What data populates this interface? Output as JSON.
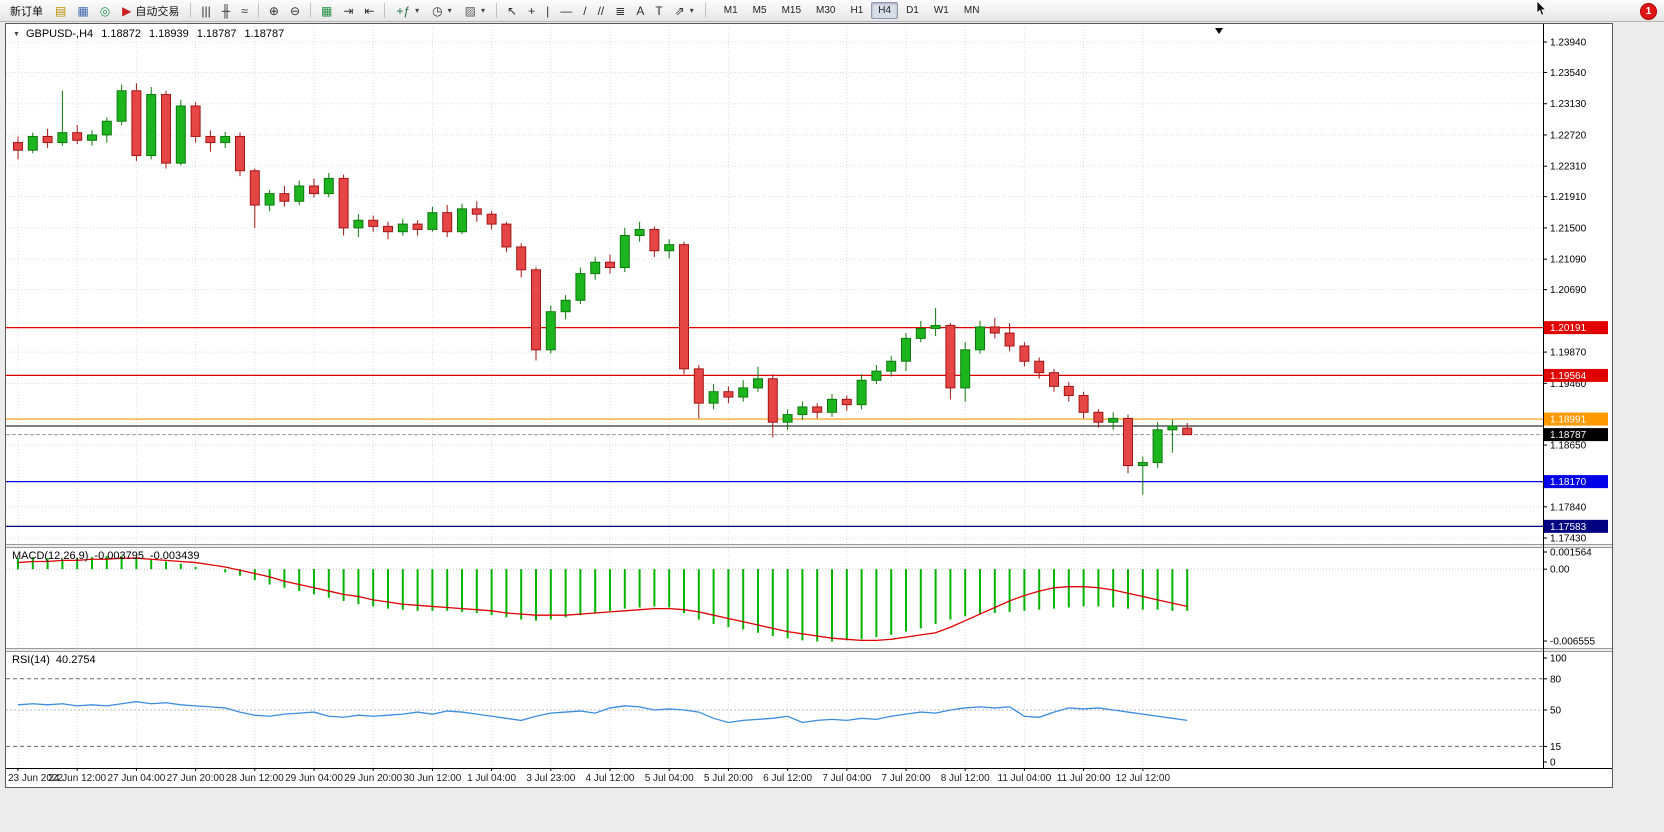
{
  "toolbar": {
    "new_order_label": "新订单",
    "auto_trading_label": "自动交易",
    "timeframes": [
      "M1",
      "M5",
      "M15",
      "M30",
      "H1",
      "H4",
      "D1",
      "W1",
      "MN"
    ],
    "active_timeframe": "H4",
    "notification_count": "1"
  },
  "chart_header": {
    "symbol": "GBPUSD-,H4",
    "open": "1.18872",
    "high": "1.18939",
    "low": "1.18787",
    "close": "1.18787"
  },
  "macd_header": {
    "name": "MACD(12,26,9)",
    "value": "-0.003795",
    "signal": "-0.003439"
  },
  "rsi_header": {
    "name": "RSI(14)",
    "value": "40.2754"
  },
  "colors": {
    "bull": "#1db51d",
    "bull_stroke": "#0d7a0d",
    "bear": "#e54545",
    "bear_stroke": "#a31515",
    "macd_histogram": "#00b400",
    "macd_signal": "#e00000",
    "rsi_line": "#3c8ce0",
    "resistance": "#e00000",
    "pivot": "#ff9900",
    "trendline_black": "#303030",
    "support": "#0000e8",
    "support2": "#000080",
    "price_label_bg": "#000000",
    "grid": "#dcdcdc"
  },
  "icons": {
    "collapse": {
      "glyph": "▼",
      "color": "#444444"
    },
    "market_watch": {
      "glyph": "▤",
      "color": "#c09000"
    },
    "data_window": {
      "glyph": "▦",
      "color": "#4068b0"
    },
    "navigator": {
      "glyph": "◎",
      "color": "#209055"
    },
    "auto_trading": {
      "glyph": "▶",
      "color": "#cc2020"
    },
    "bar_chart": {
      "glyph": "|||",
      "color": "#303030"
    },
    "candle_chart": {
      "glyph": "╫",
      "color": "#303030"
    },
    "line_chart": {
      "glyph": "≈",
      "color": "#303030"
    },
    "zoom_in": {
      "glyph": "⊕",
      "color": "#303030"
    },
    "zoom_out": {
      "glyph": "⊖",
      "color": "#303030"
    },
    "tile_windows": {
      "glyph": "▦",
      "color": "#209040"
    },
    "auto_scroll": {
      "glyph": "⇥",
      "color": "#303030"
    },
    "chart_shift": {
      "glyph": "⇤",
      "color": "#303030"
    },
    "add_indicator": {
      "glyph": "+ƒ",
      "color": "#207040"
    },
    "period": {
      "glyph": "◷",
      "color": "#303030"
    },
    "template": {
      "glyph": "▨",
      "color": "#606060"
    },
    "dropdown": {
      "glyph": "▾",
      "color": "#404040"
    },
    "cursor_tool": {
      "glyph": "↖",
      "color": "#303030"
    },
    "crosshair": {
      "glyph": "+",
      "color": "#303030"
    },
    "vline": {
      "glyph": "|",
      "color": "#303030"
    },
    "hline": {
      "glyph": "—",
      "color": "#303030"
    },
    "trendline": {
      "glyph": "/",
      "color": "#303030"
    },
    "channel": {
      "glyph": "//",
      "color": "#303030"
    },
    "fibonacci": {
      "glyph": "≣",
      "color": "#303030"
    },
    "text_tool": {
      "glyph": "A",
      "color": "#303030"
    },
    "label_tool": {
      "glyph": "T",
      "color": "#303030"
    },
    "shapes": {
      "glyph": "⇗",
      "color": "#303030"
    }
  },
  "chart_data": [
    {
      "type": "candlestick",
      "title": "GBPUSD-,H4",
      "label_every": 4,
      "time_labels": [
        "23 Jun 2022",
        "24 Jun 12:00",
        "27 Jun 04:00",
        "27 Jun 20:00",
        "28 Jun 12:00",
        "29 Jun 04:00",
        "29 Jun 20:00",
        "30 Jun 12:00",
        "1 Jul 04:00",
        "3 Jul 23:00",
        "4 Jul 12:00",
        "5 Jul 04:00",
        "5 Jul 20:00",
        "6 Jul 12:00",
        "7 Jul 04:00",
        "7 Jul 20:00",
        "8 Jul 12:00",
        "11 Jul 04:00",
        "11 Jul 20:00",
        "12 Jul 12:00"
      ],
      "price_axis": {
        "ticks": [
          "1.23940",
          "1.23540",
          "1.23130",
          "1.22720",
          "1.22310",
          "1.21910",
          "1.21500",
          "1.21090",
          "1.20690",
          "1.19870",
          "1.19460",
          "1.18650",
          "1.17840",
          "1.17430"
        ],
        "ylim": [
          "1.17430",
          "1.23940"
        ]
      },
      "levels": [
        {
          "price": "1.20191",
          "color_key": "resistance",
          "show_label": true
        },
        {
          "price": "1.19564",
          "color_key": "resistance",
          "show_label": true
        },
        {
          "price": "1.18991",
          "color_key": "pivot",
          "show_label": true
        },
        {
          "price": "1.18900",
          "color_key": "trendline_black",
          "show_label": false
        },
        {
          "price": "1.18170",
          "color_key": "support",
          "show_label": true
        },
        {
          "price": "1.17583",
          "color_key": "support2",
          "show_label": true
        }
      ],
      "current_price": "1.18787",
      "ohlc": [
        [
          1.2262,
          1.227,
          1.224,
          1.2252
        ],
        [
          1.2252,
          1.2275,
          1.2248,
          1.227
        ],
        [
          1.227,
          1.228,
          1.2255,
          1.2262
        ],
        [
          1.2262,
          1.233,
          1.2258,
          1.2275
        ],
        [
          1.2275,
          1.2285,
          1.226,
          1.2265
        ],
        [
          1.2265,
          1.2278,
          1.2258,
          1.2272
        ],
        [
          1.2272,
          1.2295,
          1.2262,
          1.229
        ],
        [
          1.229,
          1.2338,
          1.2285,
          1.233
        ],
        [
          1.233,
          1.234,
          1.2238,
          1.2245
        ],
        [
          1.2245,
          1.2335,
          1.224,
          1.2325
        ],
        [
          1.2325,
          1.233,
          1.2228,
          1.2235
        ],
        [
          1.2235,
          1.2318,
          1.2232,
          1.231
        ],
        [
          1.231,
          1.2315,
          1.2262,
          1.227
        ],
        [
          1.227,
          1.2278,
          1.225,
          1.2262
        ],
        [
          1.2262,
          1.2276,
          1.2255,
          1.227
        ],
        [
          1.227,
          1.2275,
          1.2218,
          1.2225
        ],
        [
          1.2225,
          1.2228,
          1.215,
          1.218
        ],
        [
          1.218,
          1.22,
          1.2172,
          1.2195
        ],
        [
          1.2195,
          1.2205,
          1.2178,
          1.2185
        ],
        [
          1.2185,
          1.2212,
          1.218,
          1.2205
        ],
        [
          1.2205,
          1.2215,
          1.219,
          1.2195
        ],
        [
          1.2195,
          1.2222,
          1.219,
          1.2215
        ],
        [
          1.2215,
          1.222,
          1.214,
          1.215
        ],
        [
          1.215,
          1.2168,
          1.2138,
          1.216
        ],
        [
          1.216,
          1.2166,
          1.2145,
          1.2152
        ],
        [
          1.2152,
          1.2158,
          1.2135,
          1.2145
        ],
        [
          1.2145,
          1.2162,
          1.214,
          1.2155
        ],
        [
          1.2155,
          1.216,
          1.214,
          1.2148
        ],
        [
          1.2148,
          1.2178,
          1.2145,
          1.217
        ],
        [
          1.217,
          1.218,
          1.2138,
          1.2145
        ],
        [
          1.2145,
          1.2182,
          1.2142,
          1.2175
        ],
        [
          1.2175,
          1.2185,
          1.2158,
          1.2168
        ],
        [
          1.2168,
          1.2172,
          1.2148,
          1.2155
        ],
        [
          1.2155,
          1.2158,
          1.2118,
          1.2125
        ],
        [
          1.2125,
          1.213,
          1.2085,
          1.2095
        ],
        [
          1.2095,
          1.2098,
          1.1976,
          1.199
        ],
        [
          1.199,
          1.2048,
          1.1985,
          1.204
        ],
        [
          1.204,
          1.2062,
          1.203,
          1.2055
        ],
        [
          1.2055,
          1.2098,
          1.205,
          1.209
        ],
        [
          1.209,
          1.2112,
          1.2082,
          1.2105
        ],
        [
          1.2105,
          1.2115,
          1.209,
          1.2098
        ],
        [
          1.2098,
          1.215,
          1.2092,
          1.214
        ],
        [
          1.214,
          1.2158,
          1.2132,
          1.2148
        ],
        [
          1.2148,
          1.2152,
          1.2112,
          1.212
        ],
        [
          1.212,
          1.2135,
          1.211,
          1.2128
        ],
        [
          1.2128,
          1.2132,
          1.1958,
          1.1965
        ],
        [
          1.1965,
          1.197,
          1.19,
          1.192
        ],
        [
          1.192,
          1.1945,
          1.1912,
          1.1935
        ],
        [
          1.1935,
          1.1942,
          1.192,
          1.1928
        ],
        [
          1.1928,
          1.195,
          1.1922,
          1.194
        ],
        [
          1.194,
          1.1968,
          1.1935,
          1.1952
        ],
        [
          1.1952,
          1.1958,
          1.1875,
          1.1895
        ],
        [
          1.1895,
          1.1912,
          1.1885,
          1.1905
        ],
        [
          1.1905,
          1.1922,
          1.1898,
          1.1915
        ],
        [
          1.1915,
          1.192,
          1.19,
          1.1908
        ],
        [
          1.1908,
          1.1932,
          1.1902,
          1.1925
        ],
        [
          1.1925,
          1.193,
          1.191,
          1.1918
        ],
        [
          1.1918,
          1.1958,
          1.1912,
          1.195
        ],
        [
          1.195,
          1.197,
          1.1945,
          1.1962
        ],
        [
          1.1962,
          1.1982,
          1.1955,
          1.1975
        ],
        [
          1.1975,
          1.2012,
          1.1962,
          1.2005
        ],
        [
          1.2005,
          1.2028,
          1.2,
          1.2018
        ],
        [
          1.2018,
          1.2045,
          1.2008,
          1.2022
        ],
        [
          1.2022,
          1.2025,
          1.1925,
          1.194
        ],
        [
          1.194,
          1.2,
          1.1922,
          1.199
        ],
        [
          1.199,
          1.2028,
          1.1985,
          1.202
        ],
        [
          1.202,
          1.2032,
          1.2005,
          1.2012
        ],
        [
          1.2012,
          1.2025,
          1.1988,
          1.1995
        ],
        [
          1.1995,
          1.2,
          1.1968,
          1.1975
        ],
        [
          1.1975,
          1.198,
          1.1952,
          1.196
        ],
        [
          1.196,
          1.1965,
          1.1935,
          1.1942
        ],
        [
          1.1942,
          1.1948,
          1.1922,
          1.193
        ],
        [
          1.193,
          1.1935,
          1.19,
          1.1908
        ],
        [
          1.1908,
          1.1912,
          1.1888,
          1.1895
        ],
        [
          1.1895,
          1.1908,
          1.1885,
          1.19
        ],
        [
          1.19,
          1.1905,
          1.1828,
          1.1838
        ],
        [
          1.1838,
          1.185,
          1.18,
          1.1842
        ],
        [
          1.1842,
          1.1895,
          1.1835,
          1.1885
        ],
        [
          1.1885,
          1.1898,
          1.1855,
          1.189
        ],
        [
          1.18872,
          1.18939,
          1.18787,
          1.18787
        ]
      ]
    },
    {
      "type": "bar",
      "name": "MACD(12,26,9)",
      "current": {
        "macd": "-0.003795",
        "signal": "-0.003439"
      },
      "axis": {
        "ticks": [
          "0.001564",
          "0.00",
          "-0.006555"
        ]
      },
      "values": [
        0.001,
        0.0011,
        0.001,
        0.0009,
        0.001,
        0.0011,
        0.0012,
        0.0012,
        0.0011,
        0.0009,
        0.0007,
        0.0005,
        0.0002,
        0.0,
        -0.0003,
        -0.0006,
        -0.001,
        -0.0014,
        -0.0017,
        -0.002,
        -0.0023,
        -0.0026,
        -0.0029,
        -0.0032,
        -0.0034,
        -0.0036,
        -0.0037,
        -0.0038,
        -0.0038,
        -0.0038,
        -0.0039,
        -0.004,
        -0.0042,
        -0.0044,
        -0.0046,
        -0.0047,
        -0.0046,
        -0.0044,
        -0.0042,
        -0.004,
        -0.0038,
        -0.0036,
        -0.0035,
        -0.0034,
        -0.0035,
        -0.004,
        -0.0046,
        -0.005,
        -0.0053,
        -0.0055,
        -0.0058,
        -0.0061,
        -0.0063,
        -0.0065,
        -0.0066,
        -0.0066,
        -0.0065,
        -0.0064,
        -0.0062,
        -0.006,
        -0.0057,
        -0.0054,
        -0.005,
        -0.0046,
        -0.0043,
        -0.0041,
        -0.004,
        -0.0039,
        -0.0038,
        -0.0037,
        -0.0036,
        -0.0035,
        -0.0034,
        -0.0034,
        -0.0035,
        -0.0036,
        -0.0037,
        -0.0037,
        -0.0038,
        -0.0038
      ],
      "signal": [
        0.0006,
        0.0007,
        0.0007,
        0.0008,
        0.0008,
        0.0009,
        0.0009,
        0.001,
        0.001,
        0.0009,
        0.0008,
        0.0007,
        0.0006,
        0.0004,
        0.0002,
        -0.0001,
        -0.0004,
        -0.0007,
        -0.0011,
        -0.0014,
        -0.0017,
        -0.002,
        -0.0023,
        -0.0025,
        -0.0028,
        -0.003,
        -0.0032,
        -0.0033,
        -0.0034,
        -0.0035,
        -0.0036,
        -0.0037,
        -0.0038,
        -0.004,
        -0.0041,
        -0.0042,
        -0.0042,
        -0.0042,
        -0.0041,
        -0.004,
        -0.0039,
        -0.0038,
        -0.0037,
        -0.0036,
        -0.0036,
        -0.0037,
        -0.0039,
        -0.0042,
        -0.0045,
        -0.0048,
        -0.0051,
        -0.0054,
        -0.0057,
        -0.0059,
        -0.0061,
        -0.0063,
        -0.0064,
        -0.0065,
        -0.0065,
        -0.0064,
        -0.0062,
        -0.006,
        -0.0058,
        -0.0053,
        -0.0047,
        -0.0041,
        -0.0035,
        -0.0029,
        -0.0024,
        -0.002,
        -0.0017,
        -0.0016,
        -0.0016,
        -0.0017,
        -0.0019,
        -0.0022,
        -0.0025,
        -0.0028,
        -0.0031,
        -0.0034
      ]
    },
    {
      "type": "line",
      "name": "RSI(14)",
      "current": "40.2754",
      "axis": {
        "ticks": [
          "100",
          "80",
          "50",
          "15",
          "0"
        ]
      },
      "levels": [
        80,
        50,
        15
      ],
      "values": [
        55,
        56,
        55,
        56,
        54,
        55,
        54,
        56,
        58,
        56,
        57,
        55,
        54,
        53,
        52,
        48,
        45,
        44,
        46,
        47,
        48,
        44,
        43,
        45,
        44,
        45,
        46,
        48,
        46,
        49,
        48,
        46,
        44,
        42,
        40,
        44,
        47,
        48,
        49,
        47,
        52,
        54,
        53,
        50,
        51,
        50,
        48,
        42,
        38,
        40,
        41,
        42,
        44,
        38,
        40,
        41,
        40,
        42,
        41,
        44,
        46,
        48,
        47,
        50,
        52,
        53,
        52,
        53,
        44,
        43,
        48,
        52,
        51,
        52,
        50,
        48,
        46,
        44,
        42,
        40
      ]
    }
  ]
}
